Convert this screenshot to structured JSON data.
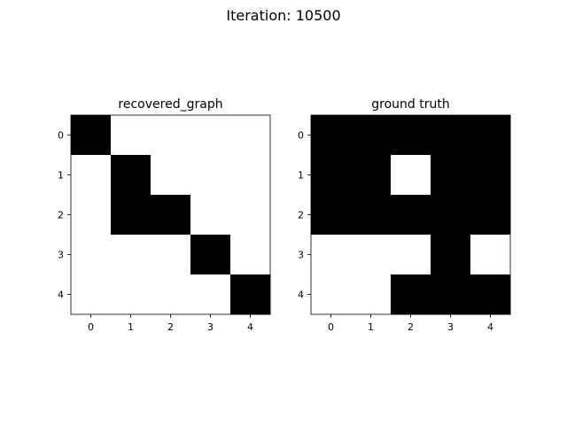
{
  "figure": {
    "suptitle": "Iteration: 10500"
  },
  "chart_data": [
    {
      "type": "heatmap",
      "title": "recovered_graph",
      "xlabel": "",
      "ylabel": "",
      "x": [
        0,
        1,
        2,
        3,
        4
      ],
      "y": [
        0,
        1,
        2,
        3,
        4
      ],
      "x_tick_labels": [
        "0",
        "1",
        "2",
        "3",
        "4"
      ],
      "y_tick_labels": [
        "0",
        "1",
        "2",
        "3",
        "4"
      ],
      "colormap": "binary",
      "colors": {
        "1": "#000000",
        "0": "#ffffff"
      },
      "grid": false,
      "values": [
        [
          1,
          0,
          0,
          0,
          0
        ],
        [
          0,
          1,
          0,
          0,
          0
        ],
        [
          0,
          1,
          1,
          0,
          0
        ],
        [
          0,
          0,
          0,
          1,
          0
        ],
        [
          0,
          0,
          0,
          0,
          1
        ]
      ]
    },
    {
      "type": "heatmap",
      "title": "ground truth",
      "xlabel": "",
      "ylabel": "",
      "x": [
        0,
        1,
        2,
        3,
        4
      ],
      "y": [
        0,
        1,
        2,
        3,
        4
      ],
      "x_tick_labels": [
        "0",
        "1",
        "2",
        "3",
        "4"
      ],
      "y_tick_labels": [
        "0",
        "1",
        "2",
        "3",
        "4"
      ],
      "colormap": "binary",
      "colors": {
        "1": "#000000",
        "0": "#ffffff"
      },
      "grid": false,
      "values": [
        [
          1,
          1,
          1,
          1,
          1
        ],
        [
          1,
          1,
          0,
          1,
          1
        ],
        [
          1,
          1,
          1,
          1,
          1
        ],
        [
          0,
          0,
          0,
          1,
          0
        ],
        [
          0,
          0,
          1,
          1,
          1
        ]
      ]
    }
  ]
}
